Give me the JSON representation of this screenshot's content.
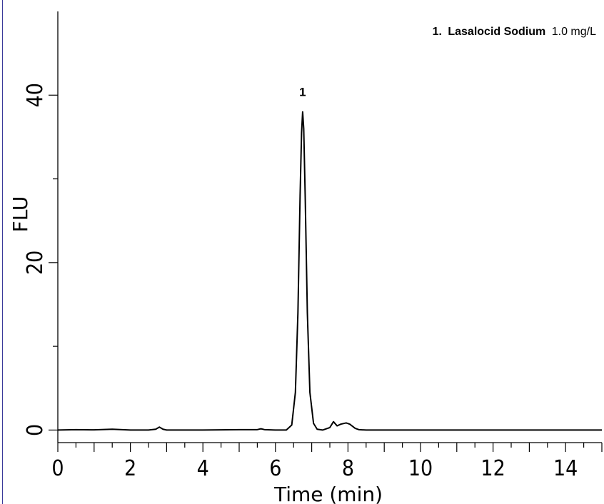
{
  "chart_data": {
    "type": "line",
    "xlabel": "Time (min)",
    "ylabel": "FLU",
    "xlim": [
      0,
      15
    ],
    "ylim": [
      -1.5,
      50
    ],
    "x_ticks": [
      0,
      2,
      4,
      6,
      8,
      10,
      12,
      14
    ],
    "y_ticks": [
      0,
      20,
      40
    ],
    "legend": {
      "number": "1.",
      "compound": "Lasalocid Sodium",
      "concentration": "1.0 mg/L"
    },
    "peaks": [
      {
        "label": "1",
        "rt": 6.75,
        "height": 38.0
      }
    ],
    "series": [
      {
        "x": [
          0,
          0.5,
          1.0,
          1.5,
          2.0,
          2.5,
          2.7,
          2.8,
          2.9,
          3.0,
          3.5,
          4.0,
          4.5,
          5.0,
          5.5,
          5.6,
          5.7,
          6.0,
          6.3,
          6.45,
          6.55,
          6.62,
          6.68,
          6.72,
          6.75,
          6.78,
          6.82,
          6.88,
          6.95,
          7.05,
          7.15,
          7.3,
          7.5,
          7.6,
          7.7,
          7.8,
          7.95,
          8.05,
          8.2,
          8.3,
          8.5,
          9.0,
          10,
          11,
          12,
          13,
          14,
          15
        ],
        "y": [
          0,
          0.05,
          0.02,
          0.1,
          0.0,
          0.0,
          0.1,
          0.35,
          0.1,
          0.0,
          0.0,
          0.0,
          0.02,
          0.05,
          0.05,
          0.15,
          0.05,
          0.0,
          0.0,
          0.6,
          4.5,
          14.0,
          28.0,
          35.5,
          38.0,
          36.0,
          28.0,
          14.0,
          4.5,
          0.8,
          0.1,
          0.0,
          0.3,
          1.0,
          0.5,
          0.7,
          0.85,
          0.7,
          0.2,
          0.05,
          0.0,
          0.0,
          0.0,
          0.0,
          0.0,
          0.0,
          0.0,
          0.0
        ]
      }
    ]
  }
}
